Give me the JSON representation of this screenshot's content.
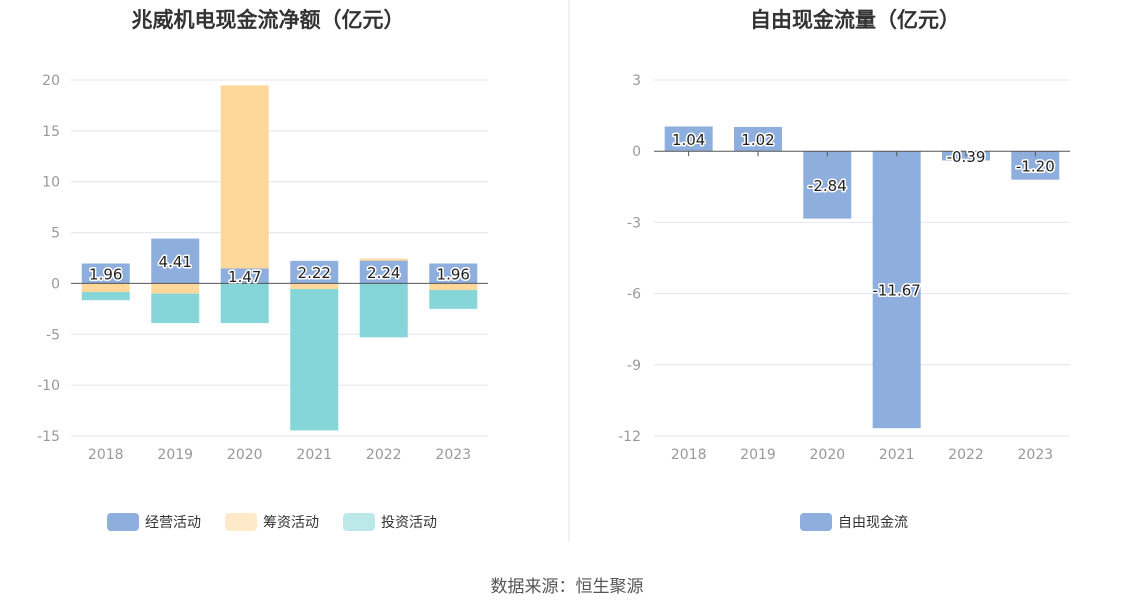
{
  "source": "数据来源：恒生聚源",
  "colors": {
    "operating": "#8eaedd",
    "financing": "#fed89b",
    "investing": "#86d5d9",
    "free_cf": "#8eaedd"
  },
  "chart_data": [
    {
      "type": "bar",
      "stacked": true,
      "title": "兆威机电现金流净额（亿元）",
      "categories": [
        "2018",
        "2019",
        "2020",
        "2021",
        "2022",
        "2023"
      ],
      "ylim": [
        -15,
        20
      ],
      "yticks": [
        20,
        15,
        10,
        5,
        0,
        -5,
        -10,
        -15
      ],
      "grid": true,
      "legend_position": "bottom",
      "series": [
        {
          "name": "经营活动",
          "color_key": "operating",
          "values": [
            1.96,
            4.41,
            1.47,
            2.22,
            2.24,
            1.96
          ],
          "labels": [
            "1.96",
            "4.41",
            "1.47",
            "2.22",
            "2.24",
            "1.96"
          ]
        },
        {
          "name": "筹资活动",
          "color_key": "financing",
          "values": [
            -0.85,
            -1.0,
            18.0,
            -0.55,
            0.2,
            -0.65
          ],
          "labels": []
        },
        {
          "name": "投资活动",
          "color_key": "investing",
          "values": [
            -0.8,
            -2.9,
            -3.9,
            -13.9,
            -5.3,
            -1.85
          ],
          "labels": []
        }
      ]
    },
    {
      "type": "bar",
      "title": "自由现金流量（亿元）",
      "categories": [
        "2018",
        "2019",
        "2020",
        "2021",
        "2022",
        "2023"
      ],
      "ylim": [
        -12,
        3
      ],
      "yticks": [
        3,
        0,
        -3,
        -6,
        -9,
        -12
      ],
      "grid": true,
      "legend_position": "bottom",
      "series": [
        {
          "name": "自由现金流",
          "color_key": "free_cf",
          "values": [
            1.04,
            1.02,
            -2.84,
            -11.67,
            -0.39,
            -1.2
          ],
          "labels": [
            "1.04",
            "1.02",
            "-2.84",
            "-11.67",
            "-0.39",
            "-1.20"
          ]
        }
      ]
    }
  ]
}
